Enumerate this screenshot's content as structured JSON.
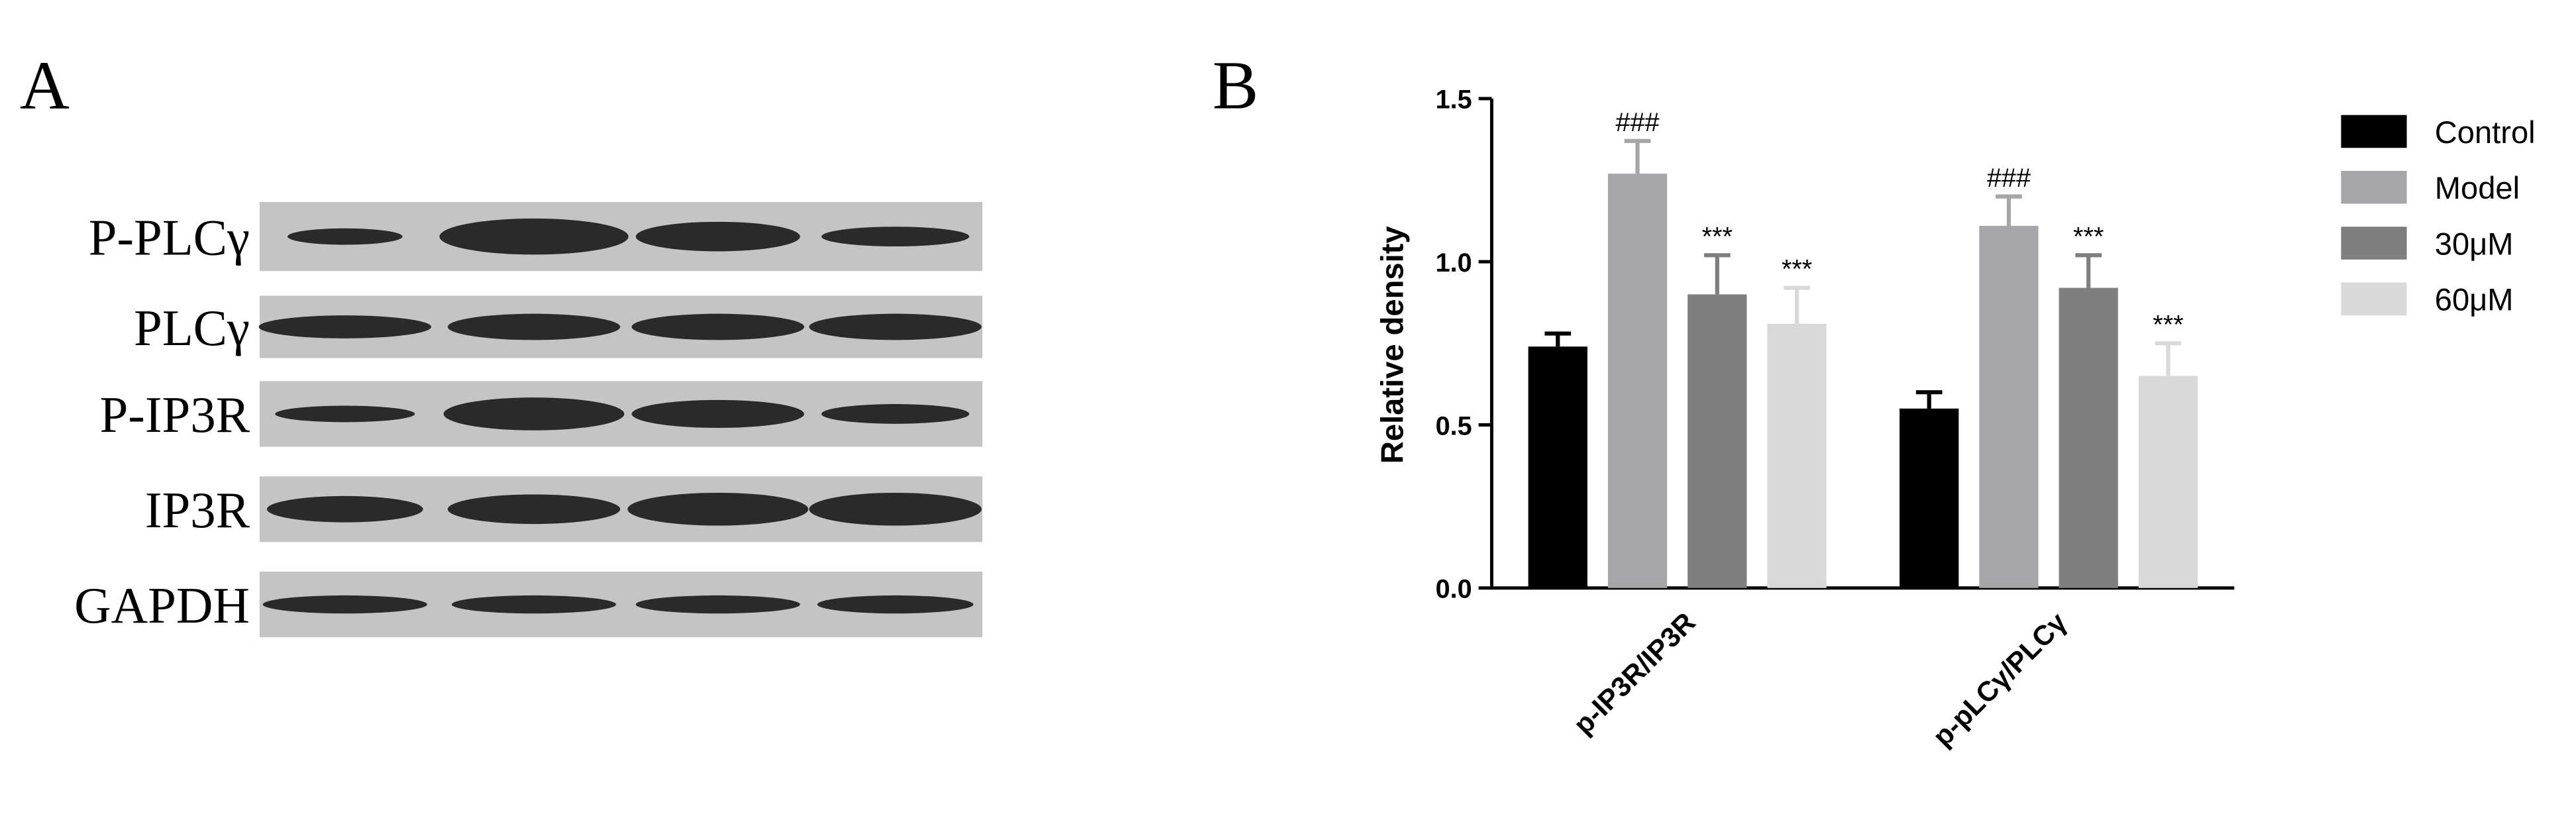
{
  "panel_labels": [
    "A",
    "B"
  ],
  "blot_rows": [
    "P-PLCγ",
    "PLCγ",
    "P-IP3R",
    "IP3R",
    "GAPDH"
  ],
  "chart_data": {
    "type": "bar",
    "ylabel": "Relative density",
    "categories": [
      "p-IP3R/IP3R",
      "p-pLCγ/PLCγ"
    ],
    "series": [
      {
        "name": "Control",
        "color": "#000000",
        "values": [
          0.74,
          0.55
        ],
        "errors": [
          0.04,
          0.05
        ]
      },
      {
        "name": "Model",
        "color": "#a6a6a8",
        "values": [
          1.27,
          1.11
        ],
        "errors": [
          0.1,
          0.09
        ],
        "annotations": [
          "###",
          "###"
        ]
      },
      {
        "name": "30μM",
        "color": "#7f7f7f",
        "values": [
          0.9,
          0.92
        ],
        "errors": [
          0.12,
          0.1
        ],
        "annotations": [
          "***",
          "***"
        ]
      },
      {
        "name": "60μM",
        "color": "#d9d9d9",
        "values": [
          0.81,
          0.65
        ],
        "errors": [
          0.11,
          0.1
        ],
        "annotations": [
          "***",
          "***"
        ]
      }
    ],
    "ylim": [
      0,
      1.5
    ],
    "yticks": [
      {
        "value": 0,
        "label": "0.0"
      },
      0.5,
      {
        "value": 1,
        "label": "1.0"
      },
      1.5
    ]
  }
}
